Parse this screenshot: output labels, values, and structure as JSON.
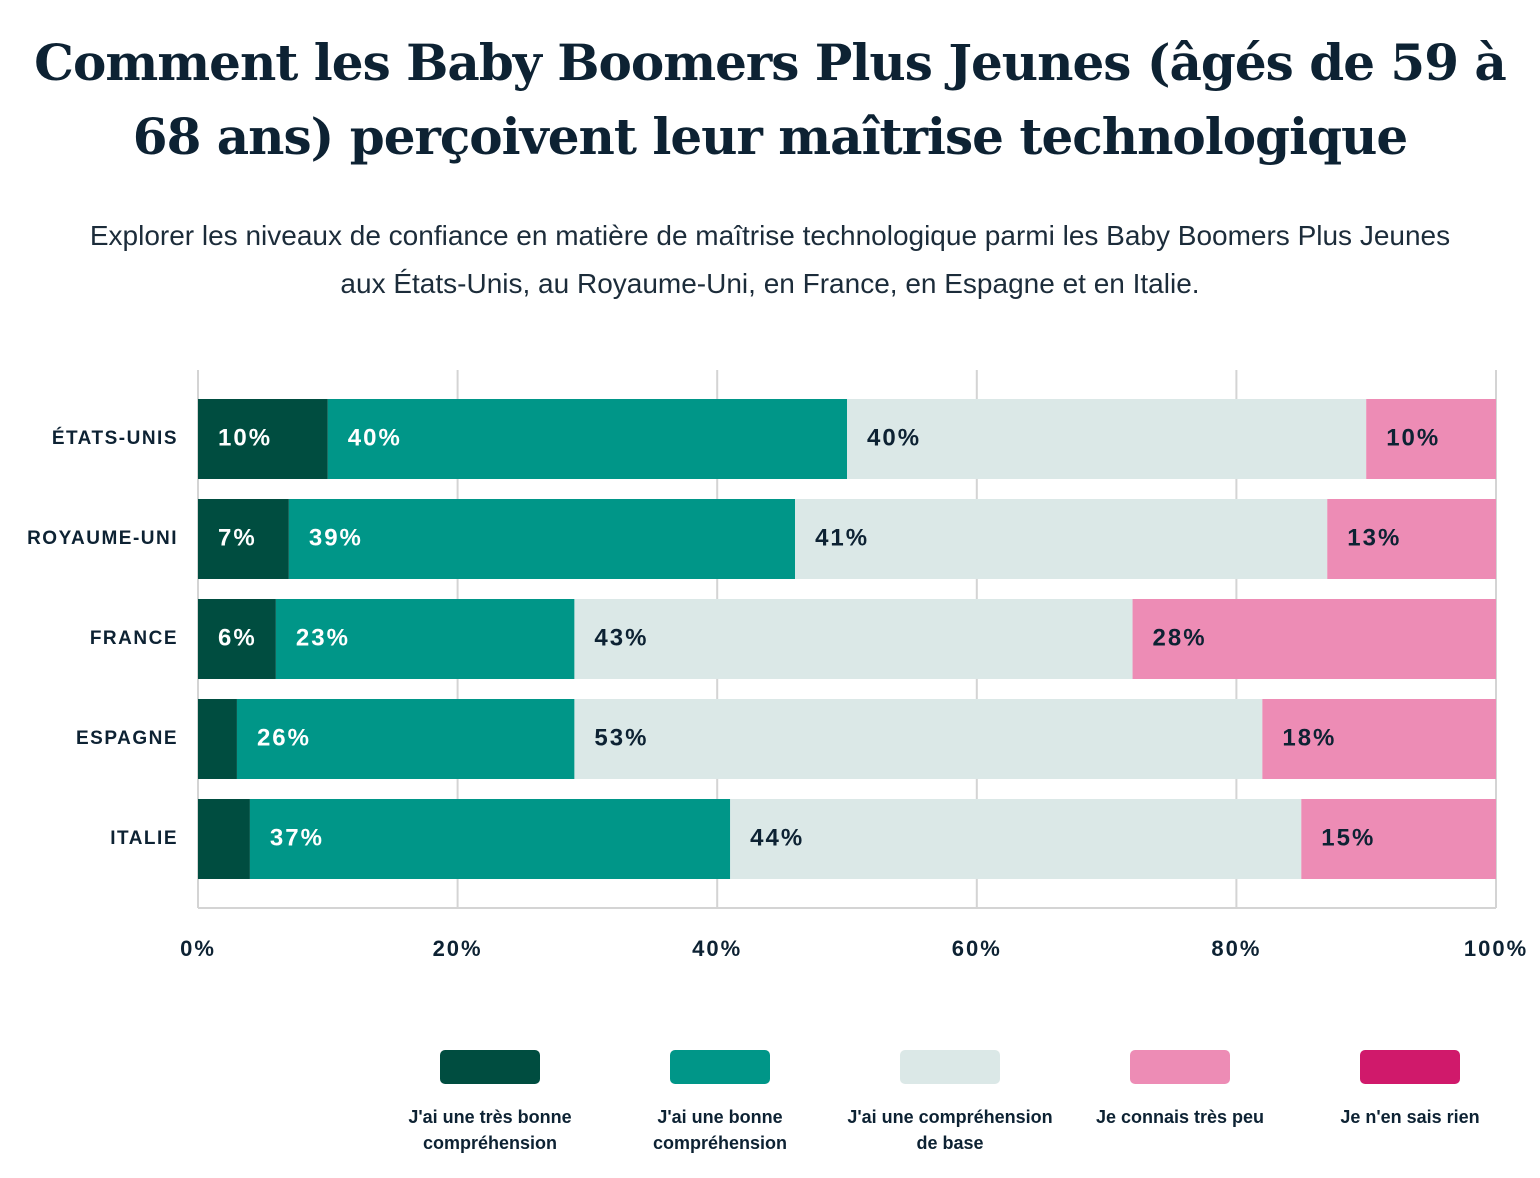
{
  "chart_data": {
    "type": "stacked_bar_horizontal",
    "title": "Comment les Baby Boomers Plus Jeunes (âgés de 59 à 68 ans) perçoivent leur maîtrise technologique",
    "subtitle": "Explorer les niveaux de confiance en matière de maîtrise technologique parmi les Baby Boomers Plus Jeunes aux États-Unis, au Royaume-Uni, en France, en Espagne et en Italie.",
    "categories": [
      "ÉTATS-UNIS",
      "ROYAUME-UNI",
      "FRANCE",
      "ESPAGNE",
      "ITALIE"
    ],
    "series": [
      {
        "name": "J'ai une très bonne compréhension",
        "color": "#004d40",
        "values": [
          10,
          7,
          6,
          3,
          4
        ],
        "value_labels": [
          "10%",
          "7%",
          "6%",
          null,
          null
        ]
      },
      {
        "name": "J'ai une bonne compréhension",
        "color": "#009688",
        "values": [
          40,
          39,
          23,
          26,
          37
        ],
        "value_labels": [
          "40%",
          "39%",
          "23%",
          "26%",
          "37%"
        ]
      },
      {
        "name": "J'ai une compréhension de base",
        "color": "#dbe8e7",
        "values": [
          40,
          41,
          43,
          53,
          44
        ],
        "value_labels": [
          "40%",
          "41%",
          "43%",
          "53%",
          "44%"
        ]
      },
      {
        "name": "Je connais très peu",
        "color": "#ed8cb5",
        "values": [
          10,
          13,
          28,
          18,
          15
        ],
        "value_labels": [
          "10%",
          "13%",
          "28%",
          "18%",
          "15%"
        ]
      },
      {
        "name": "Je n'en sais rien",
        "color": "#d0196b",
        "values": [
          0,
          0,
          0,
          0,
          0
        ],
        "value_labels": [
          null,
          null,
          null,
          null,
          null
        ]
      }
    ],
    "xlim": [
      0,
      100
    ],
    "xticks": [
      {
        "value": 0,
        "label": "0%"
      },
      {
        "value": 20,
        "label": "20%"
      },
      {
        "value": 40,
        "label": "40%"
      },
      {
        "value": 60,
        "label": "60%"
      },
      {
        "value": 80,
        "label": "80%"
      },
      {
        "value": 100,
        "label": "100%"
      }
    ],
    "grid": true
  }
}
